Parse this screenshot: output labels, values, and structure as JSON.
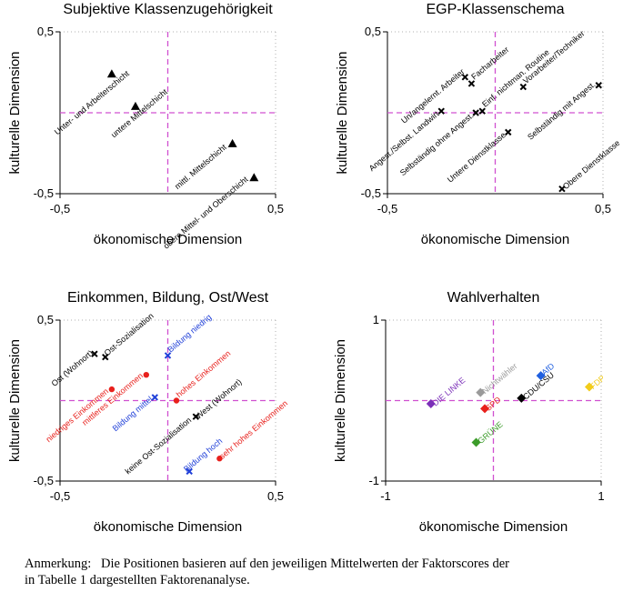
{
  "note": {
    "label": "Anmerkung:",
    "line1": "Die Positionen basieren auf den jeweiligen Mittelwerten der Faktorscores der",
    "line2": "in Tabelle 1 dargestellten Faktorenanalyse."
  },
  "chart_data": [
    {
      "type": "scatter",
      "title": "Subjektive Klassenzugehörigkeit",
      "xlabel": "ökonomische Dimension",
      "ylabel": "kulturelle Dimension",
      "xlim": [
        -0.5,
        0.5
      ],
      "ylim": [
        -0.5,
        0.5
      ],
      "xticks": [
        "-0,5",
        "0,5"
      ],
      "yticks": [
        "0,5",
        "-0,5"
      ],
      "grid": "dotted",
      "points": [
        {
          "label": "Unter- und Arbeiterschicht",
          "x": -0.26,
          "y": 0.24,
          "marker": "triangle",
          "color": "#000000"
        },
        {
          "label": "untere Mittelschicht",
          "x": -0.15,
          "y": 0.04,
          "marker": "triangle",
          "color": "#000000"
        },
        {
          "label": "mittl. Mittelschicht",
          "x": 0.3,
          "y": -0.19,
          "marker": "triangle",
          "color": "#000000"
        },
        {
          "label": "obere Mittel- und Oberschicht",
          "x": 0.4,
          "y": -0.4,
          "marker": "triangle",
          "color": "#000000"
        }
      ]
    },
    {
      "type": "scatter",
      "title": "EGP-Klassenschema",
      "xlabel": "ökonomische Dimension",
      "ylabel": "kulturelle Dimension",
      "xlim": [
        -0.5,
        0.5
      ],
      "ylim": [
        -0.5,
        0.5
      ],
      "xticks": [
        "-0,5",
        "0,5"
      ],
      "yticks": [
        "0,5",
        "-0,5"
      ],
      "grid": "dotted",
      "points": [
        {
          "label": "Un/angelernt. Arbeiter",
          "x": -0.14,
          "y": 0.22,
          "marker": "cross",
          "color": "#000000"
        },
        {
          "label": "Facharbeiter",
          "x": -0.11,
          "y": 0.18,
          "marker": "cross",
          "color": "#000000"
        },
        {
          "label": "Einf. nichtman. Routine",
          "x": -0.06,
          "y": 0.01,
          "marker": "cross",
          "color": "#000000"
        },
        {
          "label": "Vorarbeiter/Techniker",
          "x": 0.13,
          "y": 0.16,
          "marker": "cross",
          "color": "#000000"
        },
        {
          "label": "Selbständig mit Angest.",
          "x": 0.48,
          "y": 0.17,
          "marker": "cross",
          "color": "#000000"
        },
        {
          "label": "Angest./Selbst. Landwirt",
          "x": -0.25,
          "y": 0.01,
          "marker": "cross",
          "color": "#000000"
        },
        {
          "label": "Selbständig ohne Angest.",
          "x": -0.09,
          "y": -0.0,
          "marker": "cross",
          "color": "#000000"
        },
        {
          "label": "Untere Dienstklasse",
          "x": 0.06,
          "y": -0.12,
          "marker": "cross",
          "color": "#000000"
        },
        {
          "label": "Obere Dienstklasse",
          "x": 0.31,
          "y": -0.47,
          "marker": "cross",
          "color": "#000000"
        }
      ]
    },
    {
      "type": "scatter",
      "title": "Einkommen, Bildung, Ost/West",
      "xlabel": "ökonomische Dimension",
      "ylabel": "kulturelle Dimension",
      "xlim": [
        -0.5,
        0.5
      ],
      "ylim": [
        -0.5,
        0.5
      ],
      "xticks": [
        "-0,5",
        "0,5"
      ],
      "yticks": [
        "0,5",
        "-0,5"
      ],
      "grid": "dotted",
      "points": [
        {
          "label": "Ost (Wohnort)",
          "x": -0.34,
          "y": 0.29,
          "marker": "cross",
          "color": "#000000"
        },
        {
          "label": "Ost-Sozialisation",
          "x": -0.29,
          "y": 0.27,
          "marker": "cross",
          "color": "#000000"
        },
        {
          "label": "Bildung niedrig",
          "x": 0.0,
          "y": 0.28,
          "marker": "cross",
          "color": "#1f3fd8"
        },
        {
          "label": "hohes Einkommen",
          "x": 0.04,
          "y": 0.0,
          "marker": "circle",
          "color": "#e8201c"
        },
        {
          "label": "West (Wohnort)",
          "x": 0.13,
          "y": -0.1,
          "marker": "cross",
          "color": "#000000"
        },
        {
          "label": "niedriges Einkommen",
          "x": -0.26,
          "y": 0.07,
          "marker": "circle",
          "color": "#e8201c"
        },
        {
          "label": "mittleres Einkommen",
          "x": -0.1,
          "y": 0.16,
          "marker": "circle",
          "color": "#e8201c"
        },
        {
          "label": "Bildung mittel",
          "x": -0.06,
          "y": 0.02,
          "marker": "cross",
          "color": "#1f3fd8"
        },
        {
          "label": "keine Ost-Sozialisation",
          "x": 0.12,
          "y": -0.11,
          "marker": "none",
          "color": "#000000"
        },
        {
          "label": "sehr hohes Einkommen",
          "x": 0.24,
          "y": -0.36,
          "marker": "circle",
          "color": "#e8201c"
        },
        {
          "label": "Bildung hoch",
          "x": 0.1,
          "y": -0.44,
          "marker": "cross",
          "color": "#1f3fd8"
        }
      ]
    },
    {
      "type": "scatter",
      "title": "Wahlverhalten",
      "xlabel": "ökonomische Dimension",
      "ylabel": "kulturelle Dimension",
      "xlim": [
        -1,
        1
      ],
      "ylim": [
        -1,
        1
      ],
      "xticks": [
        "-1",
        "1"
      ],
      "yticks": [
        "1",
        "-1"
      ],
      "grid": "dotted",
      "points": [
        {
          "label": "DIE LINKE",
          "x": -0.58,
          "y": -0.04,
          "marker": "diamond",
          "color": "#7b2fb8"
        },
        {
          "label": "Nichtwähler",
          "x": -0.12,
          "y": 0.1,
          "marker": "diamond",
          "color": "#9a9a9a"
        },
        {
          "label": "AfD",
          "x": 0.44,
          "y": 0.31,
          "marker": "diamond",
          "color": "#1f5fe0"
        },
        {
          "label": "FDP",
          "x": 0.89,
          "y": 0.17,
          "marker": "diamond",
          "color": "#f2cc1a"
        },
        {
          "label": "CDU/CSU",
          "x": 0.26,
          "y": 0.03,
          "marker": "diamond",
          "color": "#000000"
        },
        {
          "label": "SPD",
          "x": -0.08,
          "y": -0.1,
          "marker": "diamond",
          "color": "#e8201c"
        },
        {
          "label": "GRÜNE",
          "x": -0.16,
          "y": -0.52,
          "marker": "diamond",
          "color": "#3c9c2a"
        }
      ]
    }
  ]
}
